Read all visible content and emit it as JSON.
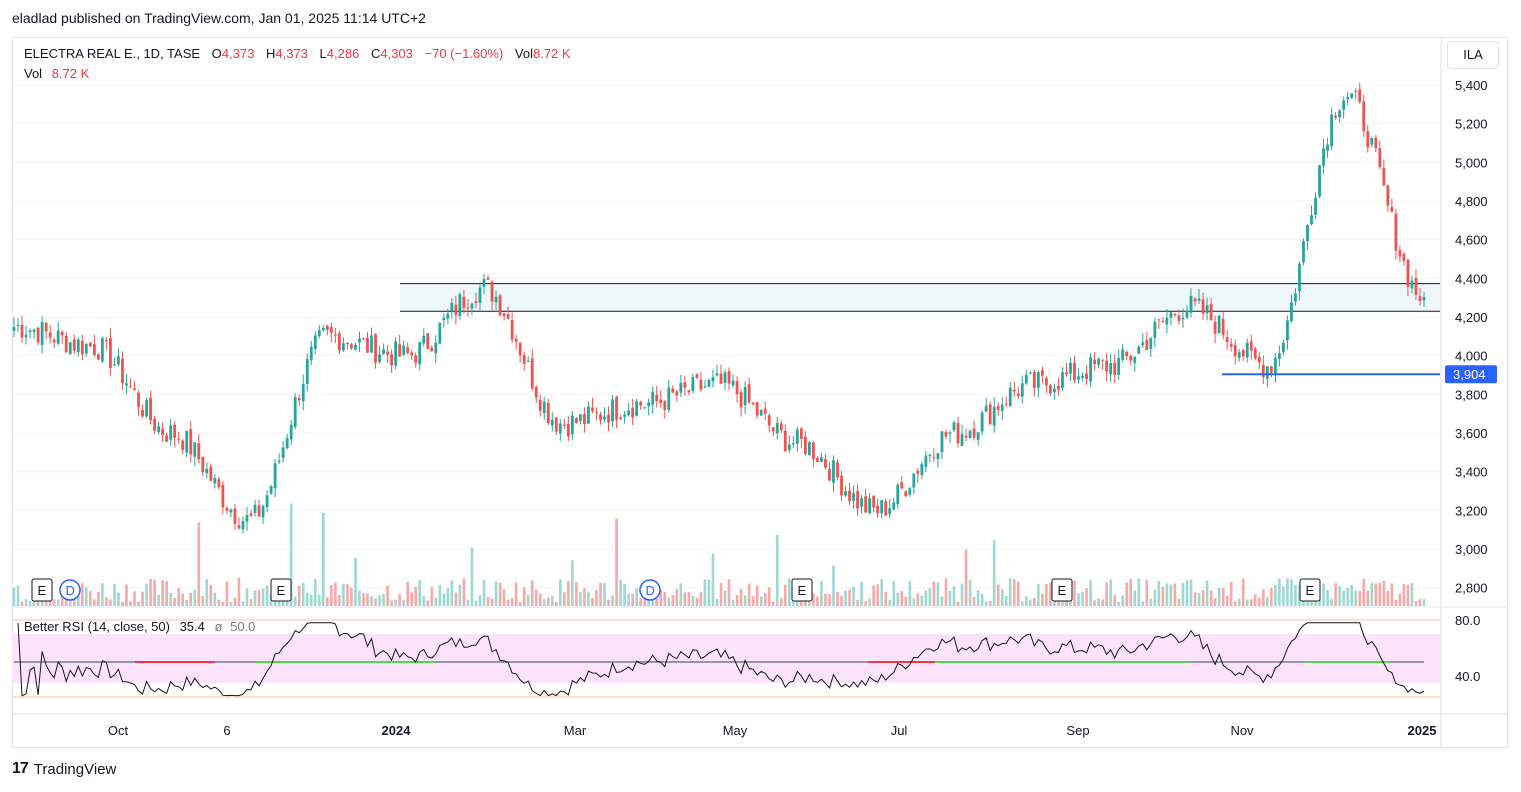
{
  "publisher_line": "eladlad published on TradingView.com, Jan 01, 2025 11:14 UTC+2",
  "legend": {
    "symbol": "ELECTRA REAL E., 1D, TASE",
    "o_label": "O",
    "o_value": "4,373",
    "h_label": "H",
    "h_value": "4,373",
    "l_label": "L",
    "l_value": "4,286",
    "c_label": "C",
    "c_value": "4,303",
    "change": "−70 (−1.60%)",
    "vol_label": "Vol",
    "vol_value": "8.72 K"
  },
  "volume_legend": {
    "label": "Vol",
    "value": "8.72 K"
  },
  "rsi_legend": {
    "name": "Better RSI (14, close, 50)",
    "value": "35.4",
    "ma_symbol": "ø",
    "ma_value": "50.0"
  },
  "currency": "ILA",
  "footer_brand": "TradingView",
  "colors": {
    "up": "#26a69a",
    "down": "#ef5350",
    "vol_up": "#9fd8d1",
    "vol_down": "#f7a9a7",
    "level_line": "#2962ff",
    "rsi_band": "#fde3fb",
    "rsi_ob": "#ff0000",
    "rsi_mid_green": "#4cd94c"
  },
  "chart_data": [
    {
      "type": "candlestick",
      "title": "ELECTRA REAL E., 1D, TASE",
      "y_axis_ticks": [
        "5,400",
        "5,200",
        "5,000",
        "4,800",
        "4,600",
        "4,400",
        "4,200",
        "4,000",
        "3,800",
        "3,600",
        "3,400",
        "3,200",
        "3,000",
        "2,800"
      ],
      "ylim": [
        2720,
        5480
      ],
      "x_axis_ticks": [
        "Oct",
        "6",
        "2024",
        "Mar",
        "May",
        "Jul",
        "Sep",
        "Nov",
        "2025"
      ],
      "key_points": [
        {
          "date": "Aug 2023",
          "close": 4150
        },
        {
          "date": "Sep 2023",
          "close": 4050
        },
        {
          "date": "Oct 2023",
          "close": 3600
        },
        {
          "date": "Oct 2023 low",
          "close": 3150
        },
        {
          "date": "Nov 2023",
          "close": 4100
        },
        {
          "date": "Dec 2023",
          "close": 4000
        },
        {
          "date": "Jan 2024",
          "close": 4350
        },
        {
          "date": "Feb 2024",
          "close": 3650
        },
        {
          "date": "Mar 2024",
          "close": 3750
        },
        {
          "date": "Apr 2024",
          "close": 3850
        },
        {
          "date": "May 2024",
          "close": 3550
        },
        {
          "date": "Jun 2024",
          "close": 3200
        },
        {
          "date": "Jul 2024",
          "close": 3600
        },
        {
          "date": "Aug 2024",
          "close": 3850
        },
        {
          "date": "Sep 2024",
          "close": 3950
        },
        {
          "date": "Oct 2024",
          "close": 4250
        },
        {
          "date": "Nov 2024",
          "close": 3950
        },
        {
          "date": "Dec 2024",
          "close": 5350
        },
        {
          "date": "Dec 31 2024",
          "close": 4303
        }
      ],
      "last_price": "4,303",
      "annotations": {
        "zone_top": 4373,
        "zone_bottom": 4230,
        "support_level": 3904,
        "support_label": "3,904"
      },
      "event_markers": [
        "E",
        "D",
        "E",
        "E",
        "D",
        "E",
        "E",
        "E"
      ]
    },
    {
      "type": "line",
      "title": "Better RSI (14, close, 50)",
      "y_axis_ticks": [
        "80.0",
        "40.0"
      ],
      "ylim": [
        20,
        90
      ],
      "band": [
        35,
        70
      ],
      "midline": 50,
      "last_value": 35.4
    }
  ]
}
